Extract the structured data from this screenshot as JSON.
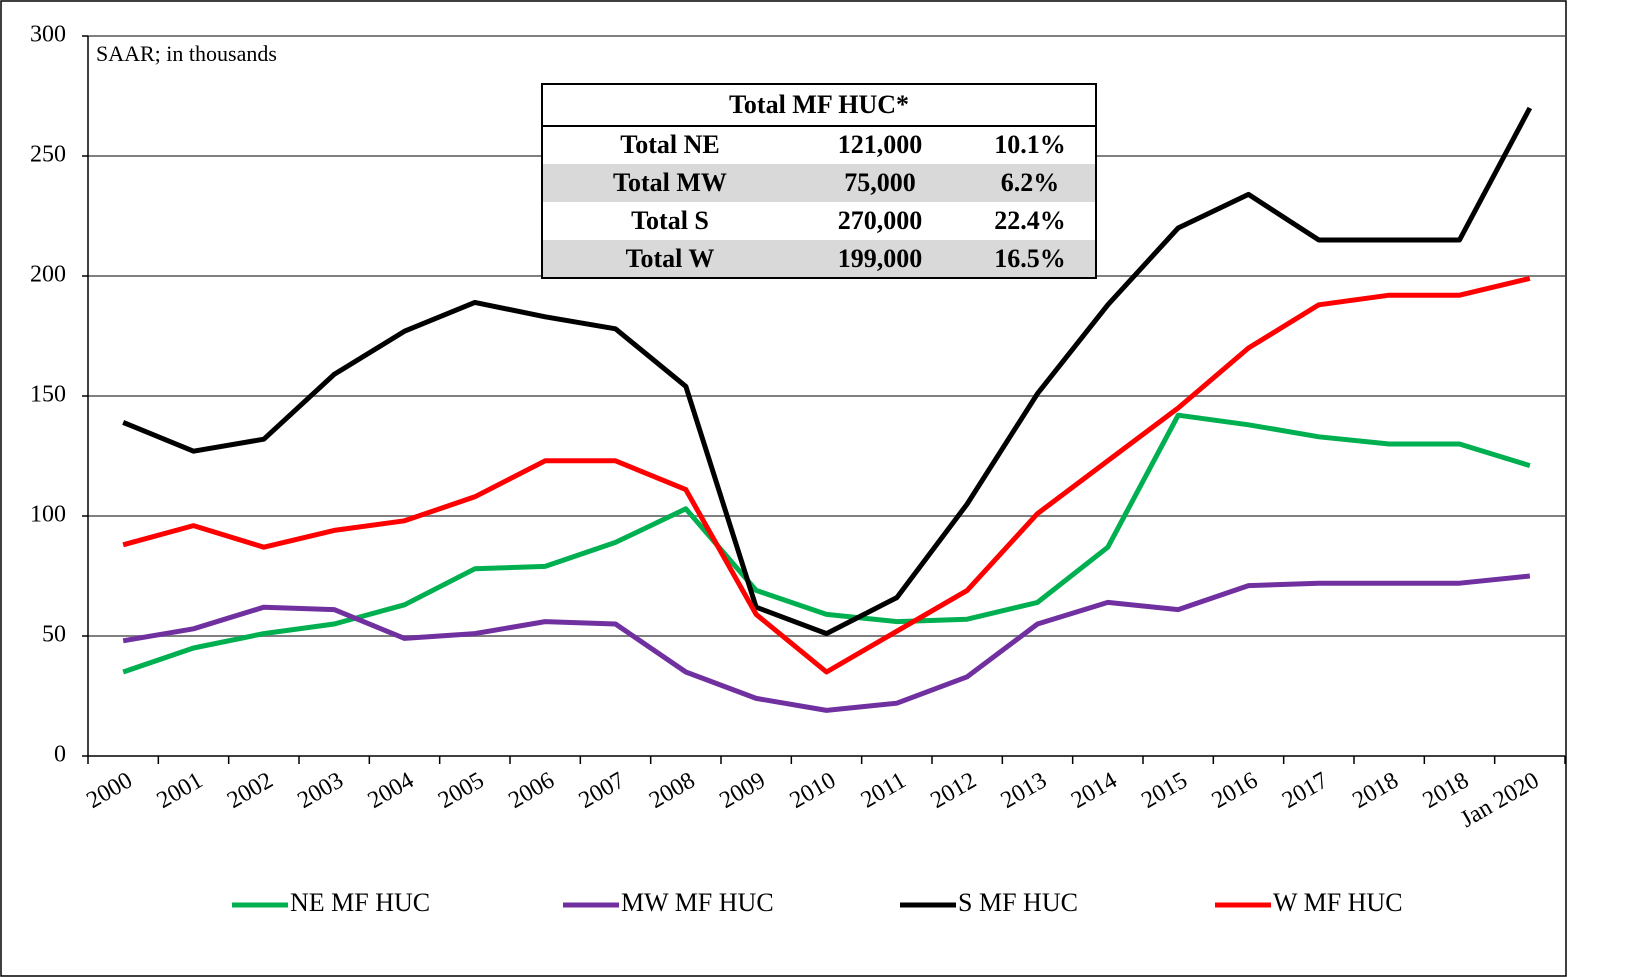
{
  "chart_data": {
    "type": "line",
    "annotation": "SAAR; in thousands",
    "categories": [
      "2000",
      "2001",
      "2002",
      "2003",
      "2004",
      "2005",
      "2006",
      "2007",
      "2008",
      "2009",
      "2010",
      "2011",
      "2012",
      "2013",
      "2014",
      "2015",
      "2016",
      "2017",
      "2018",
      "2018",
      "Jan 2020"
    ],
    "series": [
      {
        "name": "NE MF HUC",
        "color": "#00b050",
        "values": [
          35,
          45,
          51,
          55,
          63,
          78,
          79,
          89,
          103,
          69,
          59,
          56,
          57,
          64,
          87,
          142,
          138,
          133,
          130,
          130,
          121
        ]
      },
      {
        "name": "MW MF HUC",
        "color": "#7030a0",
        "values": [
          48,
          53,
          62,
          61,
          49,
          51,
          56,
          55,
          35,
          24,
          19,
          22,
          33,
          55,
          64,
          61,
          71,
          72,
          72,
          72,
          75
        ]
      },
      {
        "name": "S MF HUC",
        "color": "#000000",
        "values": [
          139,
          127,
          132,
          159,
          177,
          189,
          183,
          178,
          154,
          62,
          51,
          66,
          105,
          151,
          188,
          220,
          234,
          215,
          215,
          215,
          270
        ]
      },
      {
        "name": "W MF HUC",
        "color": "#ff0000",
        "values": [
          88,
          96,
          87,
          94,
          98,
          108,
          123,
          123,
          111,
          59,
          35,
          52,
          69,
          101,
          123,
          145,
          170,
          188,
          192,
          192,
          199
        ]
      }
    ],
    "ylim": [
      0,
      300
    ],
    "yticks": [
      0,
      50,
      100,
      150,
      200,
      250,
      300
    ],
    "grid": true,
    "legend": "bottom",
    "table": {
      "title": "Total MF HUC*",
      "rows": [
        [
          "Total NE",
          "121,000",
          "10.1%"
        ],
        [
          "Total MW",
          "75,000",
          "6.2%"
        ],
        [
          "Total S",
          "270,000",
          "22.4%"
        ],
        [
          "Total W",
          "199,000",
          "16.5%"
        ]
      ]
    }
  }
}
